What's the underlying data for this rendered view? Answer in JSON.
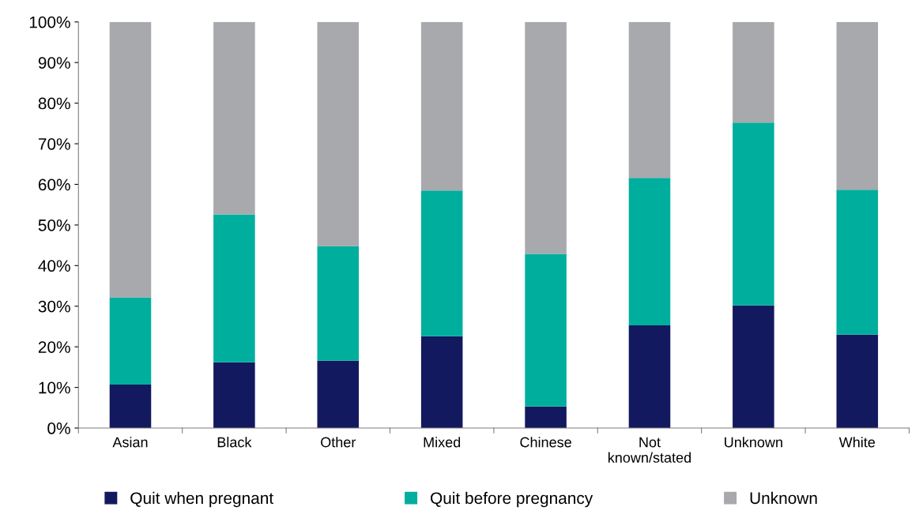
{
  "chart_data": {
    "type": "bar",
    "stacked": true,
    "categories": [
      "Asian",
      "Black",
      "Other",
      "Mixed",
      "Chinese",
      "Not\nknown/stated",
      "Unknown",
      "White"
    ],
    "series": [
      {
        "name": "Quit when pregnant",
        "color": "#12195e",
        "values": [
          10.7,
          16.2,
          16.6,
          22.6,
          5.3,
          25.3,
          30.2,
          23.0
        ]
      },
      {
        "name": "Quit before pregnancy",
        "color": "#00ae9e",
        "values": [
          21.5,
          36.4,
          28.2,
          35.9,
          37.6,
          36.3,
          45.0,
          35.7
        ]
      },
      {
        "name": "Unknown",
        "color": "#a7a9ac",
        "values": [
          67.8,
          47.4,
          55.2,
          41.5,
          57.1,
          38.4,
          24.8,
          41.3
        ]
      }
    ],
    "ylim": [
      0,
      100
    ],
    "yticks": [
      {
        "value": 0,
        "label": "0%"
      },
      {
        "value": 10,
        "label": "10%"
      },
      {
        "value": 20,
        "label": "20%"
      },
      {
        "value": 30,
        "label": "30%"
      },
      {
        "value": 40,
        "label": "40%"
      },
      {
        "value": 50,
        "label": "50%"
      },
      {
        "value": 60,
        "label": "60%"
      },
      {
        "value": 70,
        "label": "70%"
      },
      {
        "value": 80,
        "label": "80%"
      },
      {
        "value": 90,
        "label": "90%"
      },
      {
        "value": 100,
        "label": "100%"
      }
    ],
    "grid": false,
    "legend": "bottom"
  }
}
